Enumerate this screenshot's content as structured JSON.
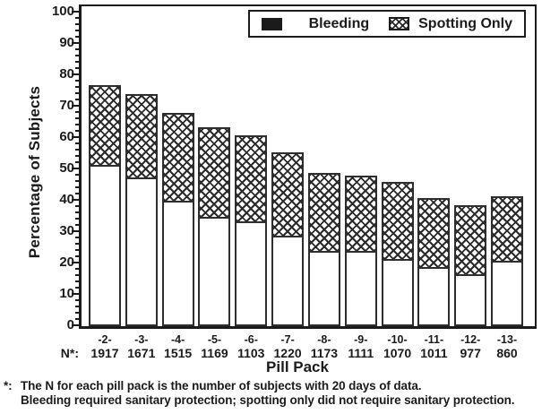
{
  "chart_data": {
    "type": "bar",
    "stacked": true,
    "categories": [
      "-2-",
      "-3-",
      "-4-",
      "-5-",
      "-6-",
      "-7-",
      "-8-",
      "-9-",
      "-10-",
      "-11-",
      "-12-",
      "-13-"
    ],
    "n_prefix": "N*:",
    "n_values": [
      "1917",
      "1671",
      "1515",
      "1169",
      "1103",
      "1220",
      "1173",
      "1111",
      "1070",
      "1011",
      "977",
      "860"
    ],
    "series": [
      {
        "name": "Bleeding",
        "swatch": "solid-black",
        "values": [
          51.5,
          47.5,
          40,
          35,
          33.5,
          29,
          24,
          24,
          21.5,
          19,
          16.5,
          21
        ]
      },
      {
        "name": "Spotting Only",
        "swatch": "crosshatch",
        "values": [
          25.5,
          26.5,
          28,
          28.5,
          27.5,
          26.5,
          25,
          24,
          24.5,
          22,
          22,
          20.5
        ]
      }
    ],
    "stack_totals": [
      77,
      74,
      68,
      63.5,
      61,
      55.5,
      49,
      48,
      46,
      41,
      38.5,
      41.5
    ],
    "xlabel": "Pill Pack",
    "ylabel": "Percentage of Subjects",
    "ylim": [
      0,
      100
    ],
    "y_tick_step": 10,
    "y_minor_tick_step": 2,
    "grid": false,
    "legend_position": "top-right-inside"
  },
  "legend": {
    "items": [
      {
        "label": "Bleeding",
        "swatch": "solid"
      },
      {
        "label": "Spotting Only",
        "swatch": "crosshatch"
      }
    ]
  },
  "footnote": {
    "marker": "*:",
    "line1": "The N for each pill pack is the number of subjects with 20 days of data.",
    "line2": "Bleeding required sanitary protection; spotting only did not require sanitary protection."
  },
  "colors": {
    "ink": "#1b1b1b",
    "bar_outline": "#2e2e2e",
    "bar_fill": "#ffffff",
    "hatch": "#2b2b2b",
    "background": "#ffffff"
  }
}
